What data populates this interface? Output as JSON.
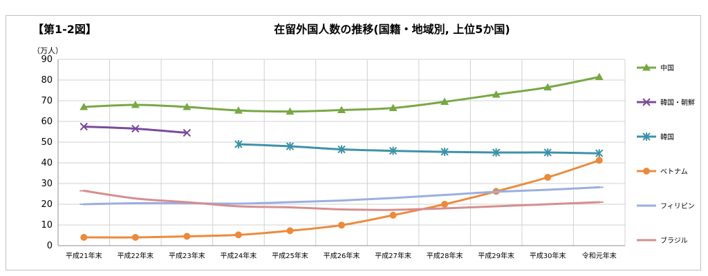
{
  "figure_label": "【第1-2図】",
  "chart_data": {
    "type": "line",
    "title": "在留外国人数の推移(国籍・地域別, 上位5か国)",
    "unit_label": "（万人）",
    "xlabel": "",
    "ylabel": "",
    "ylim": [
      0,
      90
    ],
    "yticks": [
      0,
      10,
      20,
      30,
      40,
      50,
      60,
      70,
      80,
      90
    ],
    "grid": true,
    "legend_position": "right",
    "categories": [
      "平成21年末",
      "平成22年末",
      "平成23年末",
      "平成24年末",
      "平成25年末",
      "平成26年末",
      "平成27年末",
      "平成28年末",
      "平成29年末",
      "平成30年末",
      "令和元年末"
    ],
    "series": [
      {
        "name": "中国",
        "color": "#77a843",
        "marker": "triangle",
        "values": [
          67,
          68,
          67,
          65.3,
          64.8,
          65.5,
          66.5,
          69.5,
          73,
          76.5,
          81.5
        ]
      },
      {
        "name": "韓国・朝鮮",
        "color": "#7a4a9c",
        "marker": "x",
        "values": [
          57.5,
          56.5,
          54.5,
          null,
          null,
          null,
          null,
          null,
          null,
          null,
          null
        ]
      },
      {
        "name": "韓国",
        "color": "#3d92a8",
        "marker": "star",
        "values": [
          null,
          null,
          null,
          49,
          48,
          46.5,
          45.8,
          45.3,
          45,
          45,
          44.6
        ]
      },
      {
        "name": "ベトナム",
        "color": "#ec8a3b",
        "marker": "circle",
        "values": [
          4,
          4,
          4.5,
          5.2,
          7.2,
          9.9,
          14.7,
          20,
          26.2,
          33,
          41.2
        ]
      },
      {
        "name": "フィリピン",
        "color": "#9aaee0",
        "marker": "dash",
        "values": [
          20,
          20.5,
          20.5,
          20.3,
          21,
          21.8,
          23,
          24.5,
          26,
          27,
          28.2
        ]
      },
      {
        "name": "ブラジル",
        "color": "#d68e8e",
        "marker": "dash",
        "values": [
          26.5,
          22.8,
          21,
          19,
          18.5,
          17.5,
          17.3,
          18,
          19,
          20,
          21
        ]
      }
    ]
  }
}
